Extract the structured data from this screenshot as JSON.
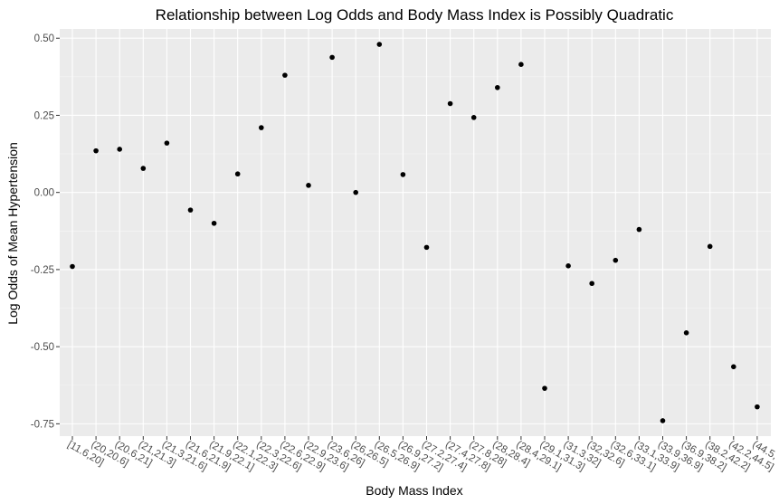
{
  "chart_data": {
    "type": "scatter",
    "title": "Relationship between Log Odds and Body Mass Index is Possibly Quadratic",
    "xlabel": "Body Mass Index",
    "ylabel": "Log Odds of Mean Hypertension",
    "categories": [
      "[11.6,20]",
      "(20,20.6]",
      "(20.6,21]",
      "(21,21.3]",
      "(21.3,21.6]",
      "(21.6,21.9]",
      "(21.9,22.1]",
      "(22.1,22.3]",
      "(22.3,22.6]",
      "(22.6,22.9]",
      "(22.9,23.6]",
      "(23.6,26]",
      "(26,26.5]",
      "(26.5,26.9]",
      "(26.9,27.2]",
      "(27.2,27.4]",
      "(27.4,27.8]",
      "(27.8,28]",
      "(28,28.4]",
      "(28.4,29.1]",
      "(29.1,31.3]",
      "(31.3,32]",
      "(32,32.6]",
      "(32.6,33.1]",
      "(33.1,33.9]",
      "(33.9,36.9]",
      "(36.9,38.2]",
      "(38.2,42.2]",
      "(42.2,44.5]",
      "(44.5,"
    ],
    "values": [
      -0.24,
      0.135,
      0.14,
      0.078,
      0.16,
      -0.057,
      -0.1,
      0.06,
      0.21,
      0.38,
      0.023,
      0.438,
      0.0,
      0.48,
      0.058,
      -0.178,
      0.288,
      0.243,
      0.34,
      0.415,
      -0.635,
      -0.238,
      -0.295,
      -0.22,
      -0.12,
      -0.74,
      -0.455,
      -0.175,
      -0.565,
      -0.695
    ],
    "yticks": [
      -0.75,
      -0.5,
      -0.25,
      0.0,
      0.25,
      0.5
    ],
    "ytick_labels": [
      "-0.75",
      "-0.50",
      "-0.25",
      "0.00",
      "0.25",
      "0.50"
    ],
    "ylim": [
      -0.79,
      0.53
    ],
    "grid": true
  }
}
